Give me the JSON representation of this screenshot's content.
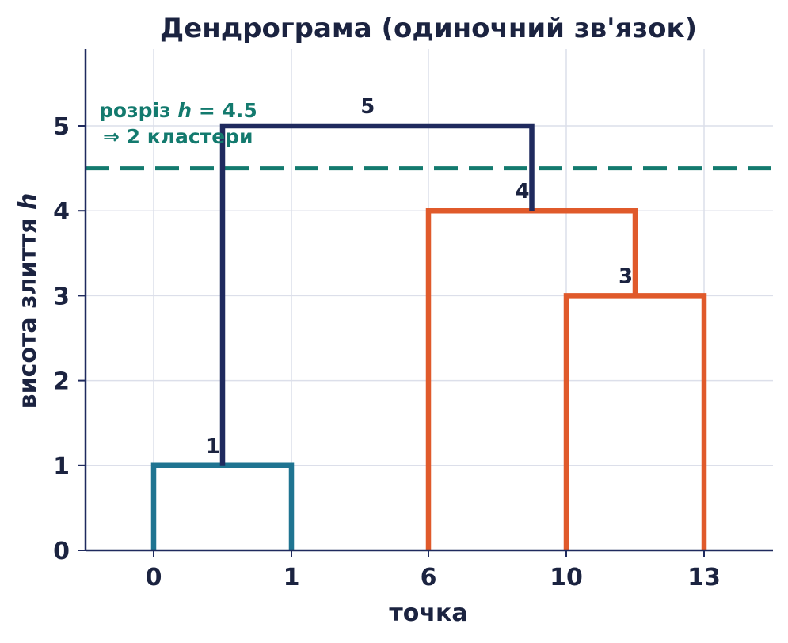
{
  "chart_data": {
    "type": "dendrogram",
    "title": "Дендрограма (одиночний зв'язок)",
    "xlabel": "точка",
    "ylabel": "висота злиття h",
    "ylim": [
      0,
      5.9
    ],
    "yticks": [
      0,
      1,
      2,
      3,
      4,
      5
    ],
    "grid": true,
    "leaves": [
      "0",
      "1",
      "6",
      "10",
      "13"
    ],
    "merges": [
      {
        "label": "1",
        "left": 0,
        "right": 1,
        "height": 1,
        "color": "#1f7491"
      },
      {
        "label": "3",
        "left": 3,
        "right": 4,
        "height": 3,
        "color": "#e05a2b"
      },
      {
        "label": "4",
        "left": 2,
        "right": 3.5,
        "height": 4,
        "color": "#e05a2b"
      },
      {
        "label": "5",
        "left": 0.5,
        "right": 2.75,
        "height": 5,
        "color": "#1f2a5e"
      }
    ],
    "cut": {
      "height": 4.5,
      "line1": "розріз h = 4.5",
      "line2": "⇒ 2 кластери",
      "color": "#137a6e"
    }
  },
  "colors": {
    "text": "#1b2340",
    "grid": "#dcdfea",
    "axis": "#1f2a5e"
  }
}
